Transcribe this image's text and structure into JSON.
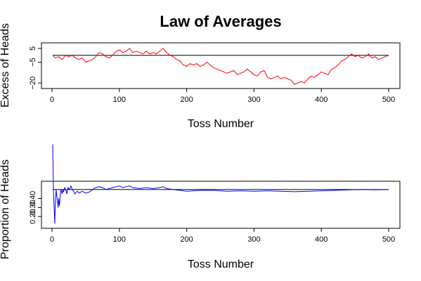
{
  "title": "Law of Averages",
  "chart_data": [
    {
      "type": "line",
      "xlabel": "Toss Number",
      "ylabel": "Excess of Heads",
      "xlim": [
        1,
        500
      ],
      "ylim": [
        -22,
        7
      ],
      "x_ticks": [
        0,
        100,
        200,
        300,
        400,
        500
      ],
      "x_tick_labels": [
        "0",
        "100",
        "200",
        "300",
        "400",
        "500"
      ],
      "y_ticks": [
        5,
        -5,
        -20
      ],
      "y_tick_labels": [
        "5",
        "−5",
        "−20"
      ],
      "reference_line": 0,
      "line_color": "#ff0000",
      "reference_color": "#000000",
      "series": [
        {
          "x": [
            1,
            5,
            10,
            15,
            20,
            25,
            30,
            35,
            40,
            45,
            50,
            55,
            60,
            65,
            70,
            75,
            80,
            85,
            90,
            95,
            100,
            105,
            110,
            115,
            120,
            125,
            130,
            135,
            140,
            145,
            150,
            155,
            160,
            165,
            170,
            175,
            180,
            185,
            190,
            195,
            200,
            205,
            210,
            215,
            220,
            225,
            230,
            235,
            240,
            245,
            250,
            255,
            260,
            265,
            270,
            275,
            280,
            285,
            290,
            295,
            300,
            305,
            310,
            315,
            320,
            325,
            330,
            335,
            340,
            345,
            350,
            355,
            360,
            365,
            370,
            375,
            380,
            385,
            390,
            395,
            400,
            405,
            410,
            415,
            420,
            425,
            430,
            435,
            440,
            445,
            450,
            455,
            460,
            465,
            470,
            475,
            480,
            485,
            490,
            495,
            500
          ],
          "y": [
            0,
            -2,
            -1,
            -3,
            0,
            -1,
            0,
            -2,
            -3,
            -2,
            -5,
            -4,
            -3,
            -1,
            2,
            1,
            -1,
            -2,
            0,
            3,
            4,
            2,
            3,
            5,
            2,
            3,
            2,
            1,
            3,
            1,
            2,
            1,
            3,
            5,
            2,
            0,
            -1,
            -3,
            -4,
            -7,
            -8,
            -6,
            -7,
            -6,
            -8,
            -7,
            -5,
            -7,
            -9,
            -10,
            -11,
            -12,
            -13,
            -12,
            -11,
            -14,
            -13,
            -12,
            -10,
            -12,
            -14,
            -15,
            -12,
            -11,
            -16,
            -17,
            -16,
            -15,
            -17,
            -16,
            -17,
            -18,
            -21,
            -20,
            -19,
            -20,
            -17,
            -15,
            -16,
            -14,
            -12,
            -13,
            -14,
            -10,
            -9,
            -7,
            -4,
            -3,
            -1,
            1,
            -1,
            0,
            -2,
            -1,
            1,
            -2,
            -1,
            -3,
            -2,
            -1,
            0
          ]
        }
      ]
    },
    {
      "type": "line",
      "xlabel": "Toss Number",
      "ylabel": "Proportion of Heads",
      "xlim": [
        1,
        500
      ],
      "ylim": [
        0.1,
        0.56
      ],
      "x_ticks": [
        0,
        100,
        200,
        300,
        400,
        500
      ],
      "x_tick_labels": [
        "0",
        "100",
        "200",
        "300",
        "400",
        "500"
      ],
      "y_ticks": [
        0.2,
        0.3,
        0.4
      ],
      "y_tick_labels": [
        "0.20",
        "0.30",
        "0.40"
      ],
      "reference_line": 0.5,
      "line_color": "#0000ff",
      "reference_color": "#000000",
      "series": [
        {
          "x": [
            1,
            2,
            3,
            4,
            5,
            6,
            7,
            8,
            9,
            10,
            11,
            12,
            13,
            14,
            15,
            16,
            17,
            18,
            19,
            20,
            21,
            22,
            23,
            24,
            25,
            26,
            27,
            28,
            29,
            30,
            32,
            34,
            36,
            38,
            40,
            45,
            50,
            55,
            60,
            65,
            70,
            75,
            80,
            85,
            90,
            95,
            100,
            105,
            110,
            115,
            120,
            130,
            140,
            150,
            160,
            165,
            170,
            180,
            190,
            200,
            210,
            220,
            230,
            240,
            250,
            260,
            280,
            300,
            320,
            340,
            360,
            380,
            400,
            420,
            440,
            460,
            480,
            500
          ],
          "y": [
            1.0,
            0.5,
            0.33,
            0.12,
            0.35,
            0.5,
            0.43,
            0.38,
            0.3,
            0.4,
            0.32,
            0.42,
            0.5,
            0.48,
            0.45,
            0.5,
            0.47,
            0.5,
            0.52,
            0.5,
            0.48,
            0.45,
            0.5,
            0.52,
            0.5,
            0.51,
            0.52,
            0.54,
            0.52,
            0.5,
            0.48,
            0.45,
            0.47,
            0.48,
            0.46,
            0.48,
            0.46,
            0.47,
            0.5,
            0.52,
            0.53,
            0.52,
            0.5,
            0.51,
            0.52,
            0.53,
            0.54,
            0.52,
            0.53,
            0.54,
            0.52,
            0.51,
            0.52,
            0.51,
            0.52,
            0.53,
            0.51,
            0.5,
            0.49,
            0.48,
            0.485,
            0.49,
            0.49,
            0.49,
            0.485,
            0.48,
            0.485,
            0.48,
            0.485,
            0.48,
            0.475,
            0.48,
            0.485,
            0.49,
            0.495,
            0.5,
            0.497,
            0.5
          ]
        }
      ]
    }
  ]
}
